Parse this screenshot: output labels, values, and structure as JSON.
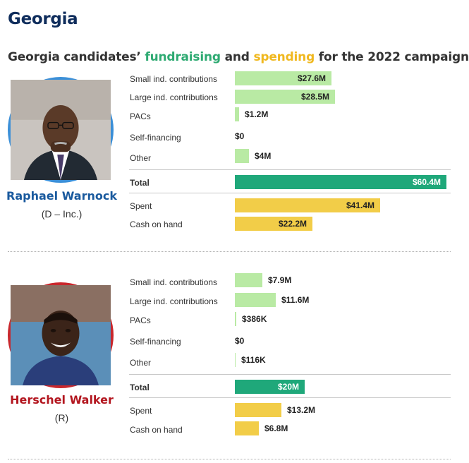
{
  "state": "Georgia",
  "chart_title": {
    "prefix": "Georgia candidates’ ",
    "fundraising": "fundraising",
    "middle": " and ",
    "spending": "spending",
    "suffix": " for the 2022 campaign"
  },
  "colors": {
    "fundraising": "#b9eaa4",
    "total": "#1fa87a",
    "spending": "#f2cd48",
    "democrat": "#3a8fd8",
    "republican": "#c9272c",
    "democrat_text": "#1a5a9e",
    "republican_text": "#b3161f"
  },
  "chart_data": {
    "type": "bar",
    "orientation": "horizontal",
    "unit": "USD millions",
    "categories": [
      "Small ind. contributions",
      "Large ind. contributions",
      "PACs",
      "Self-financing",
      "Other",
      "Total",
      "Spent",
      "Cash on hand"
    ],
    "candidates": [
      {
        "name": "Raphael Warnock",
        "party": "(D – Inc.)",
        "values": [
          27.6,
          28.5,
          1.2,
          0,
          4,
          60.4,
          41.4,
          22.2
        ],
        "labels": [
          "$27.6M",
          "$28.5M",
          "$1.2M",
          "$0",
          "$4M",
          "$60.4M",
          "$41.4M",
          "$22.2M"
        ]
      },
      {
        "name": "Herschel Walker",
        "party": "(R)",
        "values": [
          7.9,
          11.6,
          0.386,
          0,
          0.116,
          20,
          13.2,
          6.8
        ],
        "labels": [
          "$7.9M",
          "$11.6M",
          "$386K",
          "$0",
          "$116K",
          "$20M",
          "$13.2M",
          "$6.8M"
        ]
      }
    ],
    "xlim": [
      0,
      60.4
    ]
  }
}
